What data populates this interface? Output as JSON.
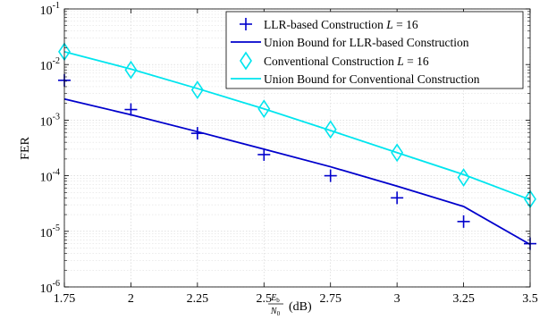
{
  "chart_data": {
    "type": "line",
    "ylabel": "FER",
    "xlabel": {
      "frac_num_main": "E",
      "frac_num_sub": "b",
      "frac_den_main": "N",
      "frac_den_sub": "0",
      "unit": "(dB)"
    },
    "xlim": [
      1.75,
      3.5
    ],
    "ylim_log10": [
      -6,
      -1
    ],
    "yscale": "log",
    "grid": true,
    "legend_position": "top-right",
    "x_ticks": [
      "1.75",
      "2",
      "2.25",
      "2.5",
      "2.75",
      "3",
      "3.25",
      "3.5"
    ],
    "y_ticks": [
      {
        "base": "10",
        "exp": "-6"
      },
      {
        "base": "10",
        "exp": "-5"
      },
      {
        "base": "10",
        "exp": "-4"
      },
      {
        "base": "10",
        "exp": "-3"
      },
      {
        "base": "10",
        "exp": "-2"
      },
      {
        "base": "10",
        "exp": "-1"
      }
    ],
    "x": [
      1.75,
      2.0,
      2.25,
      2.5,
      2.75,
      3.0,
      3.25,
      3.5
    ],
    "series": [
      {
        "name": "LLR-based Construction",
        "name_suffix_italic": "L",
        "name_suffix_rest": " = 16",
        "style": "markers",
        "marker": "plus",
        "color": "#0000cc",
        "values": [
          0.0052,
          0.00155,
          0.00058,
          0.00024,
          0.0001,
          4e-05,
          1.5e-05,
          6e-06
        ]
      },
      {
        "name": "Union Bound for LLR-based Construction",
        "style": "line",
        "color": "#0000cc",
        "values": [
          0.0024,
          0.00125,
          0.00062,
          0.0003,
          0.000145,
          6.5e-05,
          2.8e-05,
          5.8e-06
        ]
      },
      {
        "name": "Conventional Construction",
        "name_suffix_italic": "L",
        "name_suffix_rest": " = 16",
        "style": "markers",
        "marker": "diamond",
        "color": "#00e5ee",
        "values": [
          0.017,
          0.008,
          0.0035,
          0.0016,
          0.00068,
          0.00026,
          9.3e-05,
          3.8e-05
        ]
      },
      {
        "name": "Union Bound for Conventional Construction",
        "style": "line",
        "color": "#00e5ee",
        "values": [
          0.017,
          0.0083,
          0.0037,
          0.0016,
          0.00065,
          0.00026,
          0.000105,
          3.7e-05
        ]
      }
    ]
  }
}
